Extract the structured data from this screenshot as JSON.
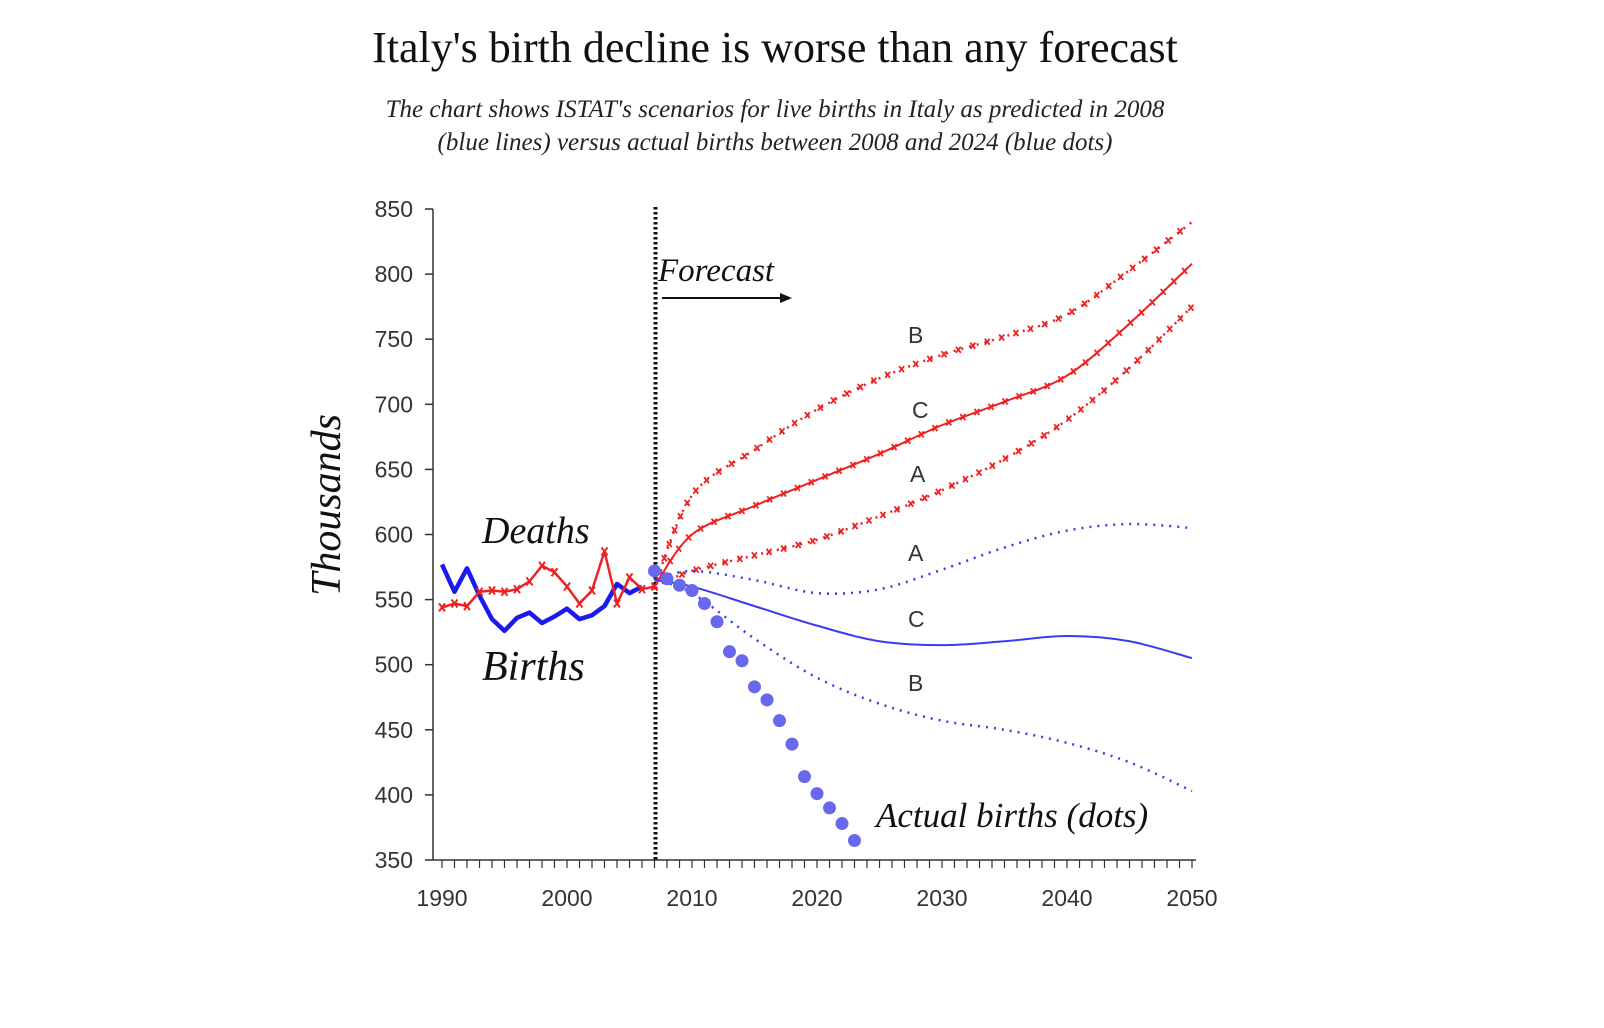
{
  "title": "Italy's birth decline is worse than any forecast",
  "subtitle_line1": "The chart shows ISTAT's scenarios for live births in Italy as predicted in 2008",
  "subtitle_line2": "(blue lines) versus actual births between 2008 and 2024 (blue dots)",
  "chart_data": {
    "type": "line",
    "ylabel": "Thousands",
    "xlabel": "",
    "xlim": [
      1990,
      2050
    ],
    "ylim": [
      350,
      850
    ],
    "x_ticks": [
      1990,
      2000,
      2010,
      2020,
      2030,
      2040,
      2050
    ],
    "y_ticks": [
      350,
      400,
      450,
      500,
      550,
      600,
      650,
      700,
      750,
      800,
      850
    ],
    "forecast_start": 2007,
    "annotations": {
      "forecast": "Forecast",
      "deaths": "Deaths",
      "births": "Births",
      "actual": "Actual births (dots)"
    },
    "colors": {
      "deaths": "#ee2222",
      "births": "#1a1aee",
      "projection_births": "#3a3af0",
      "actual": "#6868ee"
    },
    "series": [
      {
        "name": "Births",
        "kind": "historical",
        "color": "#1a1aee",
        "x": [
          1990,
          1991,
          1992,
          1993,
          1994,
          1995,
          1996,
          1997,
          1998,
          1999,
          2000,
          2001,
          2002,
          2003,
          2004,
          2005,
          2006
        ],
        "y": [
          577,
          556,
          574,
          553,
          535,
          526,
          536,
          540,
          532,
          537,
          543,
          535,
          538,
          545,
          562,
          555,
          560
        ]
      },
      {
        "name": "Deaths",
        "kind": "historical",
        "color": "#ee2222",
        "x": [
          1990,
          1991,
          1992,
          1993,
          1994,
          1995,
          1996,
          1997,
          1998,
          1999,
          2000,
          2001,
          2002,
          2003,
          2004,
          2005,
          2006,
          2007
        ],
        "y": [
          544,
          547,
          545,
          556,
          557,
          556,
          558,
          564,
          576,
          571,
          560,
          547,
          557,
          587,
          547,
          567,
          558,
          560
        ]
      },
      {
        "name": "B",
        "kind": "deaths-scenario",
        "style": "dotted",
        "color": "#ee2222",
        "x": [
          2007,
          2010,
          2015,
          2020,
          2025,
          2030,
          2035,
          2040,
          2045,
          2050
        ],
        "y": [
          560,
          630,
          665,
          696,
          720,
          738,
          752,
          769,
          803,
          840
        ]
      },
      {
        "name": "C",
        "kind": "deaths-scenario",
        "style": "solid",
        "color": "#ee2222",
        "x": [
          2007,
          2010,
          2015,
          2020,
          2025,
          2030,
          2035,
          2040,
          2045,
          2050
        ],
        "y": [
          560,
          600,
          622,
          642,
          662,
          684,
          702,
          722,
          762,
          808
        ]
      },
      {
        "name": "A",
        "kind": "deaths-scenario",
        "style": "dotted",
        "color": "#ee2222",
        "x": [
          2007,
          2010,
          2015,
          2020,
          2025,
          2030,
          2035,
          2040,
          2045,
          2050
        ],
        "y": [
          560,
          572,
          584,
          596,
          614,
          634,
          658,
          688,
          728,
          775
        ]
      },
      {
        "name": "A",
        "kind": "births-scenario",
        "style": "dotted",
        "color": "#3a3af0",
        "x": [
          2007,
          2010,
          2015,
          2020,
          2025,
          2030,
          2035,
          2040,
          2045,
          2050
        ],
        "y": [
          565,
          572,
          565,
          555,
          558,
          573,
          590,
          603,
          608,
          605
        ]
      },
      {
        "name": "C",
        "kind": "births-scenario",
        "style": "solid",
        "color": "#3a3af0",
        "x": [
          2007,
          2010,
          2015,
          2020,
          2025,
          2030,
          2035,
          2040,
          2045,
          2050
        ],
        "y": [
          565,
          560,
          545,
          530,
          518,
          515,
          518,
          522,
          518,
          505
        ]
      },
      {
        "name": "B",
        "kind": "births-scenario",
        "style": "dotted",
        "color": "#3a3af0",
        "x": [
          2007,
          2010,
          2015,
          2020,
          2025,
          2030,
          2035,
          2040,
          2045,
          2050
        ],
        "y": [
          565,
          555,
          520,
          490,
          470,
          457,
          450,
          440,
          425,
          403
        ]
      },
      {
        "name": "Actual births",
        "kind": "actual",
        "style": "dots",
        "color": "#6868ee",
        "x": [
          2008,
          2009,
          2010,
          2011,
          2012,
          2013,
          2014,
          2015,
          2016,
          2017,
          2018,
          2019,
          2020,
          2021,
          2022,
          2023,
          2024
        ],
        "y": [
          572,
          566,
          561,
          557,
          547,
          533,
          510,
          503,
          483,
          473,
          457,
          439,
          414,
          401,
          390,
          378,
          365
        ]
      }
    ]
  }
}
